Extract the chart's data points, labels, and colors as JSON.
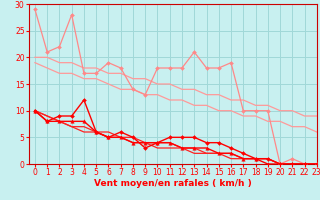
{
  "background_color": "#c8f0f0",
  "grid_color": "#a0d8d8",
  "x_label": "Vent moyen/en rafales ( km/h )",
  "xlim": [
    -0.5,
    23
  ],
  "ylim": [
    0,
    30
  ],
  "x_ticks": [
    0,
    1,
    2,
    3,
    4,
    5,
    6,
    7,
    8,
    9,
    10,
    11,
    12,
    13,
    14,
    15,
    16,
    17,
    18,
    19,
    20,
    21,
    22,
    23
  ],
  "y_ticks": [
    0,
    5,
    10,
    15,
    20,
    25,
    30
  ],
  "series": [
    {
      "x": [
        0,
        1,
        2,
        3,
        4,
        5,
        6,
        7,
        8,
        9,
        10,
        11,
        12,
        13,
        14,
        15,
        16,
        17,
        18,
        19,
        20,
        21,
        22,
        23
      ],
      "y": [
        29,
        21,
        22,
        28,
        17,
        17,
        19,
        18,
        14,
        13,
        18,
        18,
        18,
        21,
        18,
        18,
        19,
        10,
        10,
        10,
        0,
        1,
        0,
        0
      ],
      "color": "#ff8888",
      "marker": "D",
      "ms": 2.0,
      "lw": 0.9
    },
    {
      "x": [
        0,
        1,
        2,
        3,
        4,
        5,
        6,
        7,
        8,
        9,
        10,
        11,
        12,
        13,
        14,
        15,
        16,
        17,
        18,
        19,
        20,
        21,
        22,
        23
      ],
      "y": [
        20,
        20,
        19,
        19,
        18,
        18,
        17,
        17,
        16,
        16,
        15,
        15,
        14,
        14,
        13,
        13,
        12,
        12,
        11,
        11,
        10,
        10,
        9,
        9
      ],
      "color": "#ff9999",
      "marker": null,
      "ms": 0,
      "lw": 0.9
    },
    {
      "x": [
        0,
        1,
        2,
        3,
        4,
        5,
        6,
        7,
        8,
        9,
        10,
        11,
        12,
        13,
        14,
        15,
        16,
        17,
        18,
        19,
        20,
        21,
        22,
        23
      ],
      "y": [
        19,
        18,
        17,
        17,
        16,
        16,
        15,
        14,
        14,
        13,
        13,
        12,
        12,
        11,
        11,
        10,
        10,
        9,
        9,
        8,
        8,
        7,
        7,
        6
      ],
      "color": "#ff9999",
      "marker": null,
      "ms": 0,
      "lw": 0.9
    },
    {
      "x": [
        0,
        1,
        2,
        3,
        4,
        5,
        6,
        7,
        8,
        9,
        10,
        11,
        12,
        13,
        14,
        15,
        16,
        17,
        18,
        19,
        20,
        21,
        22,
        23
      ],
      "y": [
        10,
        8,
        9,
        9,
        12,
        6,
        5,
        6,
        5,
        3,
        4,
        5,
        5,
        5,
        4,
        4,
        3,
        2,
        1,
        1,
        0,
        0,
        0,
        0
      ],
      "color": "#ff0000",
      "marker": "D",
      "ms": 2.0,
      "lw": 1.0
    },
    {
      "x": [
        0,
        1,
        2,
        3,
        4,
        5,
        6,
        7,
        8,
        9,
        10,
        11,
        12,
        13,
        14,
        15,
        16,
        17,
        18,
        19,
        20,
        21,
        22,
        23
      ],
      "y": [
        10,
        9,
        8,
        7,
        7,
        6,
        6,
        5,
        5,
        4,
        4,
        4,
        3,
        3,
        2,
        2,
        2,
        1,
        1,
        1,
        0,
        0,
        0,
        0
      ],
      "color": "#ff2222",
      "marker": null,
      "ms": 0,
      "lw": 0.9
    },
    {
      "x": [
        0,
        1,
        2,
        3,
        4,
        5,
        6,
        7,
        8,
        9,
        10,
        11,
        12,
        13,
        14,
        15,
        16,
        17,
        18,
        19,
        20,
        21,
        22,
        23
      ],
      "y": [
        10,
        9,
        8,
        7,
        6,
        6,
        5,
        5,
        4,
        4,
        3,
        3,
        3,
        2,
        2,
        2,
        1,
        1,
        1,
        1,
        0,
        0,
        0,
        0
      ],
      "color": "#ff2222",
      "marker": null,
      "ms": 0,
      "lw": 0.9
    },
    {
      "x": [
        0,
        1,
        2,
        3,
        4,
        5,
        6,
        7,
        8,
        9,
        10,
        11,
        12,
        13,
        14,
        15,
        16,
        17,
        18,
        19,
        20,
        21,
        22,
        23
      ],
      "y": [
        10,
        8,
        8,
        8,
        8,
        6,
        5,
        5,
        4,
        4,
        4,
        4,
        3,
        3,
        3,
        2,
        2,
        1,
        1,
        0,
        0,
        0,
        0,
        0
      ],
      "color": "#ff0000",
      "marker": "^",
      "ms": 2.5,
      "lw": 1.0
    }
  ],
  "label_color": "#ff0000",
  "label_fontsize": 6.5,
  "tick_fontsize": 5.5,
  "tick_color": "#ff0000",
  "spine_color": "#cc0000"
}
